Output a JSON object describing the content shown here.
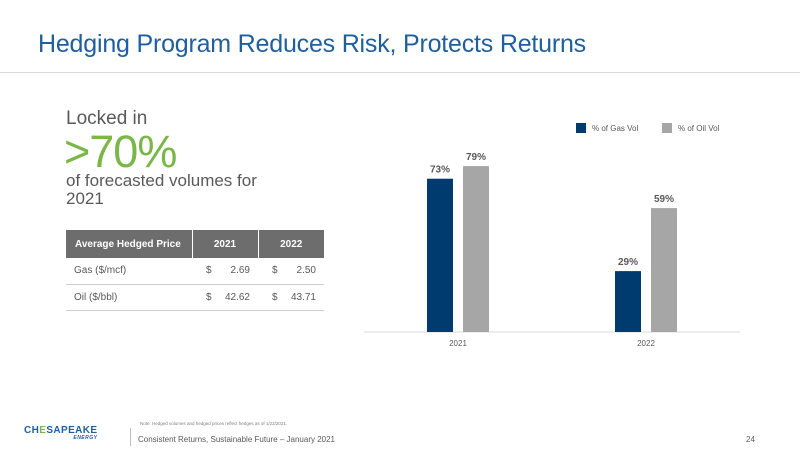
{
  "title": "Hedging Program Reduces Risk, Protects Returns",
  "callout": {
    "locked": "Locked in",
    "value": ">70%",
    "description": "of forecasted volumes for 2021"
  },
  "hedge_table": {
    "headers": [
      "Average Hedged Price",
      "2021",
      "2022"
    ],
    "rows": [
      {
        "label": "Gas ($/mcf)",
        "v2021": "2.69",
        "v2022": "2.50"
      },
      {
        "label": "Oil ($/bbl)",
        "v2021": "42.62",
        "v2022": "43.71"
      }
    ],
    "currency": "$"
  },
  "chart_data": {
    "type": "bar",
    "categories": [
      "2021",
      "2022"
    ],
    "series": [
      {
        "name": "% of Gas Vol",
        "values": [
          73,
          29
        ],
        "labels": [
          "73%",
          "29%"
        ],
        "color": "#003b6f"
      },
      {
        "name": "% of Oil Vol",
        "values": [
          79,
          59
        ],
        "labels": [
          "79%",
          "59%"
        ],
        "color": "#a6a6a6"
      }
    ],
    "ylim": [
      0,
      100
    ],
    "grid": false,
    "legend_position": "top-right"
  },
  "note": "Note: Hedged volumes and hedged prices reflect hedges as of 1/22/2021.",
  "footer": {
    "text": "Consistent Returns, Sustainable Future – January 2021",
    "page": "24"
  },
  "logo": {
    "pre": "CH",
    "accent": "E",
    "post": "SAPEAKE",
    "sub": "ENERGY"
  },
  "colors": {
    "title": "#1f5f9e",
    "accent_green": "#7ab648",
    "gas": "#003b6f",
    "oil": "#a6a6a6"
  }
}
